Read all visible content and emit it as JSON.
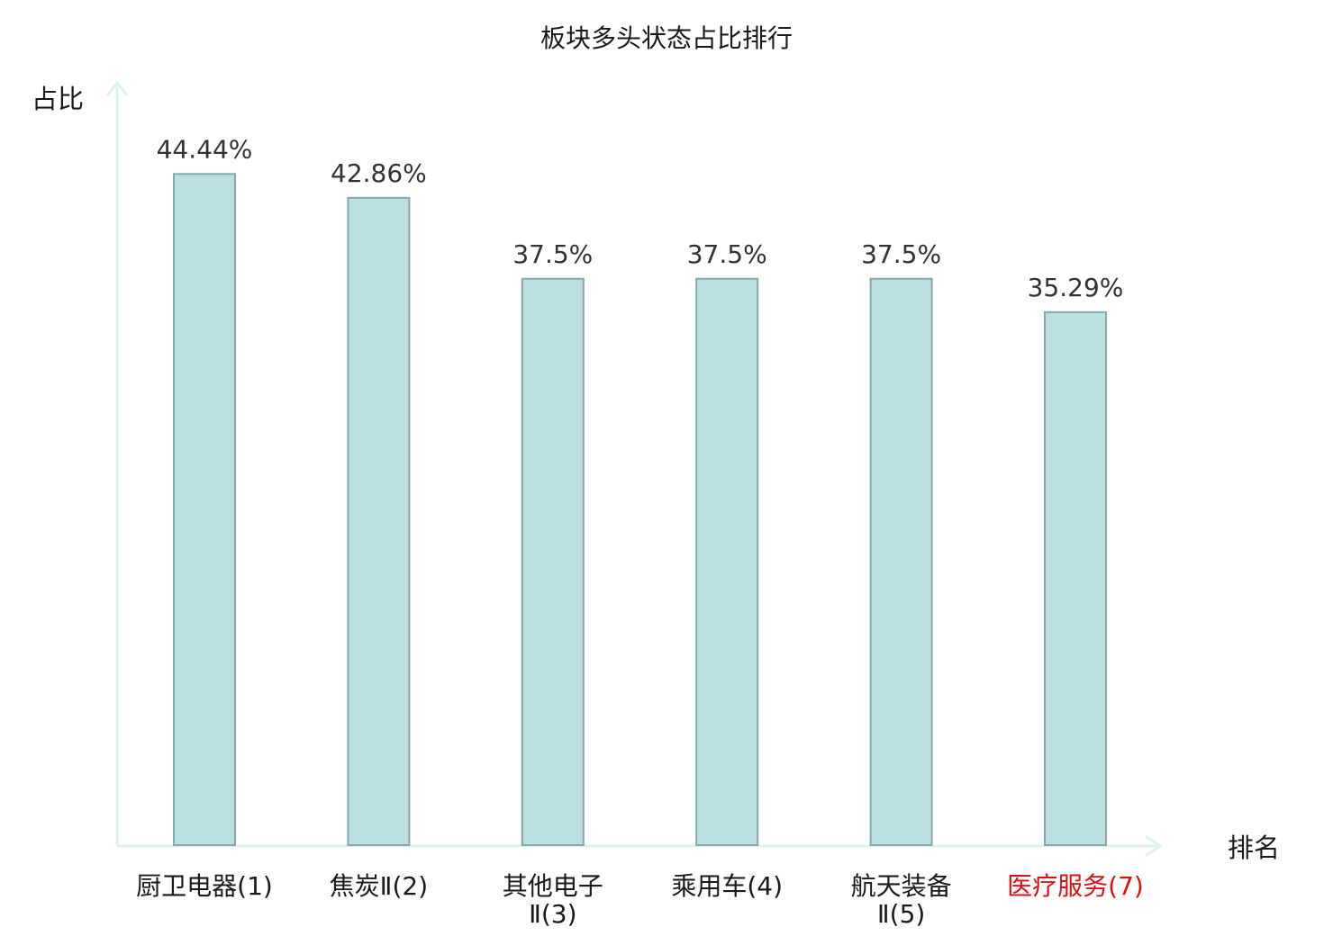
{
  "chart_data": {
    "type": "bar",
    "title": "板块多头状态占比排行",
    "ylabel": "占比",
    "xlabel": "排名",
    "ylim": [
      0,
      50
    ],
    "categories": [
      {
        "line1": "厨卫电器(1)",
        "line2": ""
      },
      {
        "line1": "焦炭Ⅱ(2)",
        "line2": ""
      },
      {
        "line1": "其他电子",
        "line2": "Ⅱ(3)"
      },
      {
        "line1": "乘用车(4)",
        "line2": ""
      },
      {
        "line1": "航天装备",
        "line2": "Ⅱ(5)"
      },
      {
        "line1": "医疗服务(7)",
        "line2": ""
      }
    ],
    "values": [
      44.44,
      42.86,
      37.5,
      37.5,
      37.5,
      35.29
    ],
    "value_labels": [
      "44.44%",
      "42.86%",
      "37.5%",
      "37.5%",
      "37.5%",
      "35.29%"
    ],
    "highlight_index": 5,
    "grid": false,
    "legend": "none"
  },
  "colors": {
    "bar_fill": "#bce0e2",
    "bar_stroke": "#86a8aa",
    "axis": "#e0f2f0",
    "label": "#1a1a1a",
    "highlight_label": "#e01010"
  }
}
